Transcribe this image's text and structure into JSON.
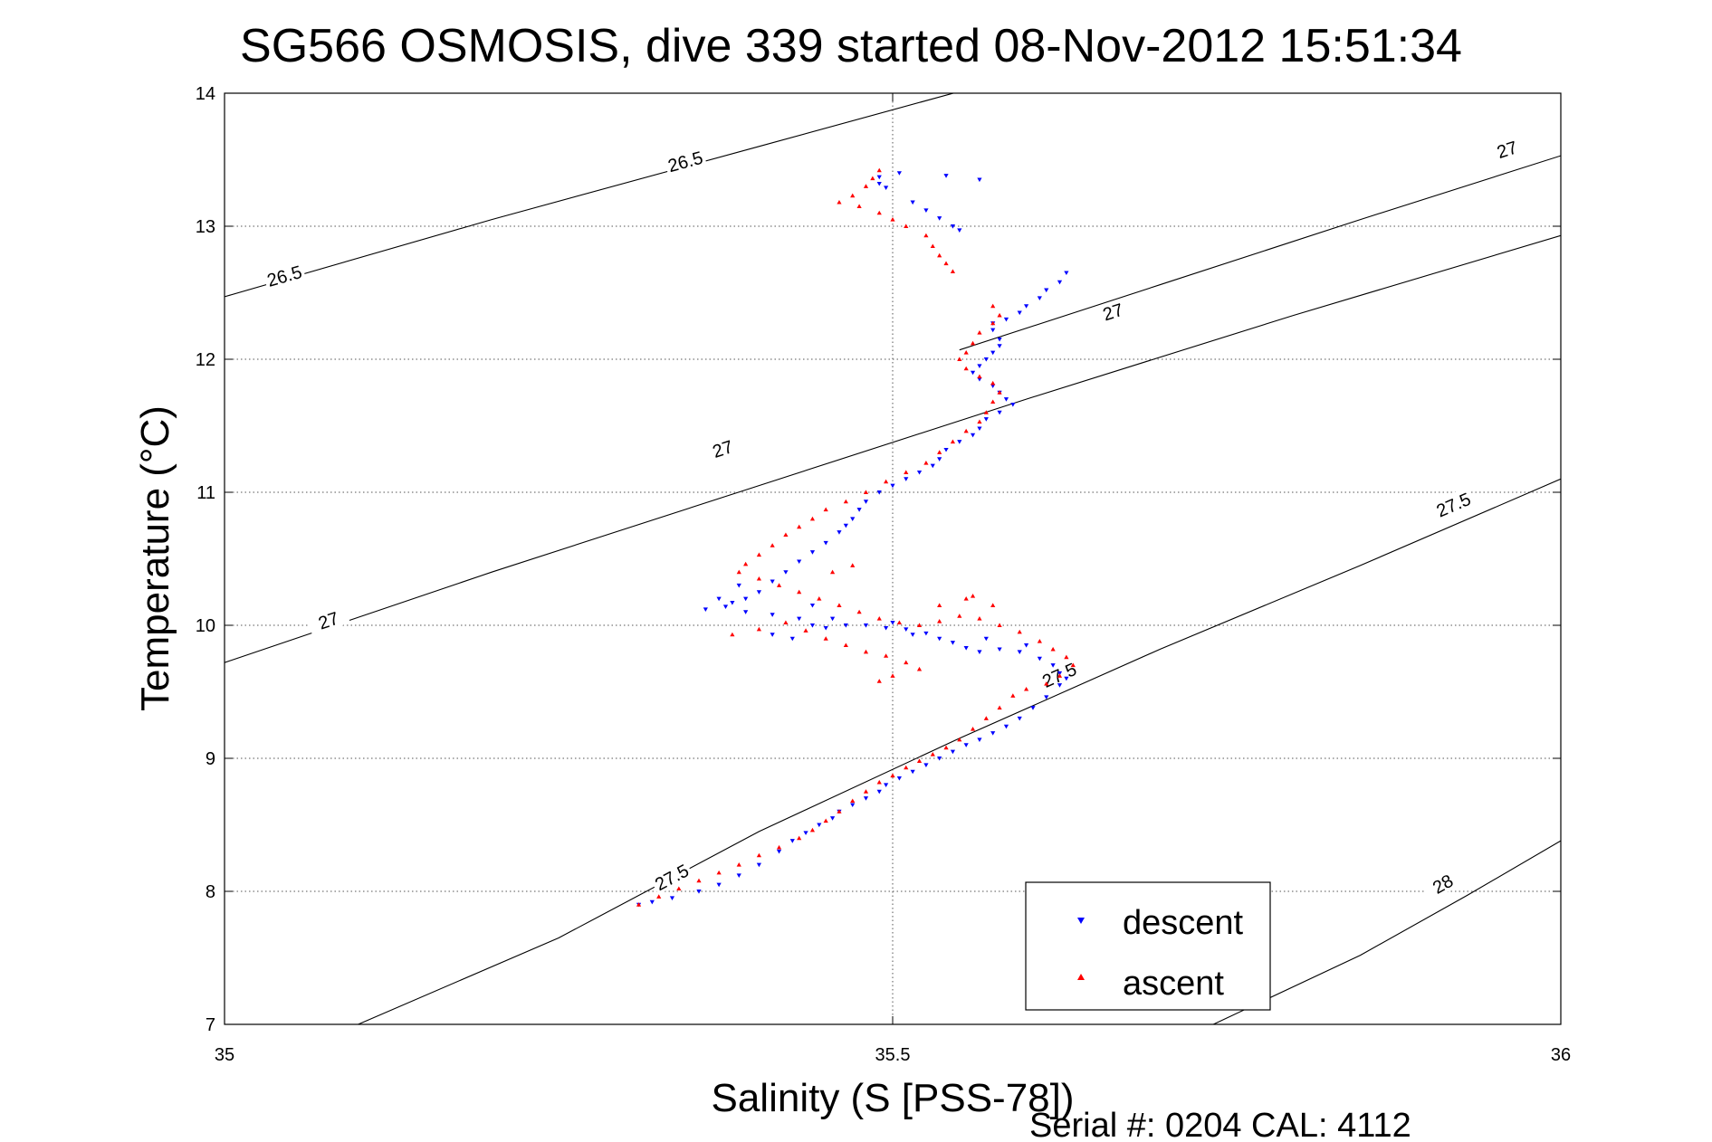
{
  "chart_data": {
    "type": "scatter",
    "title": "SG566 OSMOSIS, dive 339 started 08-Nov-2012 15:51:34",
    "xlabel": "Salinity (S [PSS-78])",
    "ylabel": "Temperature (°C)",
    "xlim": [
      35,
      36
    ],
    "ylim": [
      7,
      14
    ],
    "xticks": [
      35,
      35.5,
      36
    ],
    "xtick_labels": [
      "35",
      "35.5",
      "36"
    ],
    "yticks": [
      7,
      8,
      9,
      10,
      11,
      12,
      13,
      14
    ],
    "ytick_labels": [
      "7",
      "8",
      "9",
      "10",
      "11",
      "12",
      "13",
      "14"
    ],
    "grid": true,
    "legend_position": "bottom-right",
    "footer": "Serial #: 0204  CAL: 4112",
    "colors": {
      "descent": "#0000ff",
      "ascent": "#ff0000",
      "contour": "#000000",
      "grid": "#555555"
    },
    "contours": [
      {
        "level": "26.5",
        "points": [
          [
            35.0,
            12.47
          ],
          [
            35.2,
            13.05
          ],
          [
            35.4,
            13.6
          ],
          [
            35.6,
            14.15
          ]
        ],
        "labels": [
          {
            "text": "26.5",
            "x": 35.045,
            "y": 12.62
          },
          {
            "text": "26.5",
            "x": 35.345,
            "y": 13.48
          }
        ]
      },
      {
        "level": "27",
        "points": [
          [
            35.0,
            9.72
          ],
          [
            35.2,
            10.4
          ],
          [
            35.4,
            11.05
          ],
          [
            35.6,
            11.7
          ],
          [
            35.8,
            12.33
          ],
          [
            36.0,
            12.93
          ]
        ],
        "labels": [
          {
            "text": "27",
            "x": 35.078,
            "y": 10.03
          },
          {
            "text": "27",
            "x": 35.373,
            "y": 11.32
          },
          {
            "text": "27",
            "x": 35.665,
            "y": 12.35
          }
        ]
      },
      {
        "level": "27",
        "points": [
          [
            35.55,
            12.07
          ],
          [
            35.7,
            12.56
          ],
          [
            35.85,
            13.05
          ],
          [
            36.0,
            13.53
          ]
        ],
        "labels": [
          {
            "text": "27",
            "x": 35.96,
            "y": 13.57
          }
        ]
      },
      {
        "level": "27.5",
        "points": [
          [
            35.1,
            7.0
          ],
          [
            35.25,
            7.65
          ],
          [
            35.4,
            8.45
          ],
          [
            35.55,
            9.15
          ],
          [
            35.7,
            9.82
          ],
          [
            35.85,
            10.45
          ],
          [
            36.0,
            11.1
          ]
        ],
        "labels": [
          {
            "text": "27.5",
            "x": 35.335,
            "y": 8.1
          },
          {
            "text": "27.5",
            "x": 35.625,
            "y": 9.62
          },
          {
            "text": "27.5",
            "x": 35.92,
            "y": 10.9
          }
        ]
      },
      {
        "level": "28",
        "points": [
          [
            35.74,
            7.0
          ],
          [
            35.85,
            7.52
          ],
          [
            35.93,
            7.97
          ],
          [
            36.0,
            8.38
          ]
        ],
        "labels": [
          {
            "text": "28",
            "x": 35.912,
            "y": 8.05
          }
        ]
      }
    ],
    "series": [
      {
        "name": "descent",
        "marker": "triangle-down",
        "points": [
          [
            35.565,
            13.35
          ],
          [
            35.54,
            13.38
          ],
          [
            35.505,
            13.4
          ],
          [
            35.49,
            13.37
          ],
          [
            35.49,
            13.32
          ],
          [
            35.495,
            13.29
          ],
          [
            35.515,
            13.18
          ],
          [
            35.525,
            13.12
          ],
          [
            35.535,
            13.06
          ],
          [
            35.545,
            13.0
          ],
          [
            35.55,
            12.97
          ],
          [
            35.63,
            12.65
          ],
          [
            35.625,
            12.58
          ],
          [
            35.615,
            12.52
          ],
          [
            35.61,
            12.46
          ],
          [
            35.6,
            12.4
          ],
          [
            35.595,
            12.35
          ],
          [
            35.585,
            12.3
          ],
          [
            35.575,
            12.27
          ],
          [
            35.575,
            12.22
          ],
          [
            35.58,
            12.15
          ],
          [
            35.58,
            12.1
          ],
          [
            35.575,
            12.05
          ],
          [
            35.57,
            12.0
          ],
          [
            35.565,
            11.95
          ],
          [
            35.56,
            11.9
          ],
          [
            35.565,
            11.85
          ],
          [
            35.575,
            11.8
          ],
          [
            35.58,
            11.75
          ],
          [
            35.585,
            11.7
          ],
          [
            35.59,
            11.66
          ],
          [
            35.58,
            11.6
          ],
          [
            35.57,
            11.55
          ],
          [
            35.565,
            11.48
          ],
          [
            35.56,
            11.43
          ],
          [
            35.55,
            11.38
          ],
          [
            35.54,
            11.32
          ],
          [
            35.535,
            11.25
          ],
          [
            35.53,
            11.2
          ],
          [
            35.52,
            11.15
          ],
          [
            35.51,
            11.1
          ],
          [
            35.5,
            11.05
          ],
          [
            35.49,
            11.0
          ],
          [
            35.48,
            10.93
          ],
          [
            35.475,
            10.87
          ],
          [
            35.47,
            10.8
          ],
          [
            35.465,
            10.75
          ],
          [
            35.46,
            10.7
          ],
          [
            35.45,
            10.62
          ],
          [
            35.44,
            10.55
          ],
          [
            35.43,
            10.48
          ],
          [
            35.42,
            10.4
          ],
          [
            35.41,
            10.33
          ],
          [
            35.4,
            10.25
          ],
          [
            35.39,
            10.2
          ],
          [
            35.38,
            10.17
          ],
          [
            35.375,
            10.14
          ],
          [
            35.39,
            10.1
          ],
          [
            35.41,
            10.08
          ],
          [
            35.43,
            10.05
          ],
          [
            35.44,
            10.0
          ],
          [
            35.45,
            9.98
          ],
          [
            35.465,
            10.0
          ],
          [
            35.48,
            10.0
          ],
          [
            35.495,
            9.98
          ],
          [
            35.51,
            9.97
          ],
          [
            35.525,
            9.94
          ],
          [
            35.535,
            9.9
          ],
          [
            35.545,
            9.87
          ],
          [
            35.555,
            9.83
          ],
          [
            35.565,
            9.8
          ],
          [
            35.58,
            9.82
          ],
          [
            35.595,
            9.8
          ],
          [
            35.61,
            9.75
          ],
          [
            35.62,
            9.7
          ],
          [
            35.625,
            9.64
          ],
          [
            35.63,
            9.6
          ],
          [
            35.625,
            9.55
          ],
          [
            35.615,
            9.46
          ],
          [
            35.605,
            9.38
          ],
          [
            35.595,
            9.3
          ],
          [
            35.585,
            9.24
          ],
          [
            35.575,
            9.19
          ],
          [
            35.565,
            9.14
          ],
          [
            35.555,
            9.1
          ],
          [
            35.545,
            9.05
          ],
          [
            35.535,
            9.0
          ],
          [
            35.525,
            8.95
          ],
          [
            35.515,
            8.9
          ],
          [
            35.505,
            8.85
          ],
          [
            35.495,
            8.8
          ],
          [
            35.49,
            8.75
          ],
          [
            35.48,
            8.7
          ],
          [
            35.47,
            8.65
          ],
          [
            35.46,
            8.6
          ],
          [
            35.455,
            8.55
          ],
          [
            35.445,
            8.5
          ],
          [
            35.435,
            8.44
          ],
          [
            35.425,
            8.38
          ],
          [
            35.415,
            8.3
          ],
          [
            35.4,
            8.2
          ],
          [
            35.385,
            8.12
          ],
          [
            35.37,
            8.05
          ],
          [
            35.355,
            8.0
          ],
          [
            35.335,
            7.95
          ],
          [
            35.32,
            7.92
          ],
          [
            35.31,
            7.9
          ],
          [
            35.385,
            10.3
          ],
          [
            35.37,
            10.2
          ],
          [
            35.36,
            10.12
          ],
          [
            35.41,
            9.93
          ],
          [
            35.425,
            9.9
          ],
          [
            35.5,
            10.02
          ],
          [
            35.515,
            9.93
          ],
          [
            35.44,
            10.15
          ],
          [
            35.455,
            10.05
          ],
          [
            35.57,
            9.9
          ],
          [
            35.6,
            9.85
          ]
        ]
      },
      {
        "name": "ascent",
        "marker": "triangle-up",
        "points": [
          [
            35.49,
            13.42
          ],
          [
            35.485,
            13.36
          ],
          [
            35.48,
            13.3
          ],
          [
            35.47,
            13.23
          ],
          [
            35.46,
            13.18
          ],
          [
            35.475,
            13.15
          ],
          [
            35.49,
            13.1
          ],
          [
            35.5,
            13.05
          ],
          [
            35.51,
            13.0
          ],
          [
            35.525,
            12.93
          ],
          [
            35.53,
            12.85
          ],
          [
            35.535,
            12.78
          ],
          [
            35.54,
            12.72
          ],
          [
            35.545,
            12.66
          ],
          [
            35.575,
            12.4
          ],
          [
            35.58,
            12.33
          ],
          [
            35.575,
            12.27
          ],
          [
            35.565,
            12.2
          ],
          [
            35.56,
            12.12
          ],
          [
            35.555,
            12.05
          ],
          [
            35.55,
            12.0
          ],
          [
            35.555,
            11.93
          ],
          [
            35.565,
            11.87
          ],
          [
            35.575,
            11.82
          ],
          [
            35.58,
            11.75
          ],
          [
            35.575,
            11.68
          ],
          [
            35.57,
            11.6
          ],
          [
            35.565,
            11.53
          ],
          [
            35.555,
            11.46
          ],
          [
            35.545,
            11.38
          ],
          [
            35.535,
            11.3
          ],
          [
            35.525,
            11.22
          ],
          [
            35.51,
            11.15
          ],
          [
            35.495,
            11.08
          ],
          [
            35.48,
            11.0
          ],
          [
            35.465,
            10.93
          ],
          [
            35.45,
            10.87
          ],
          [
            35.44,
            10.8
          ],
          [
            35.43,
            10.74
          ],
          [
            35.42,
            10.68
          ],
          [
            35.41,
            10.6
          ],
          [
            35.4,
            10.53
          ],
          [
            35.39,
            10.46
          ],
          [
            35.385,
            10.4
          ],
          [
            35.4,
            10.35
          ],
          [
            35.415,
            10.3
          ],
          [
            35.43,
            10.25
          ],
          [
            35.445,
            10.2
          ],
          [
            35.46,
            10.15
          ],
          [
            35.475,
            10.1
          ],
          [
            35.49,
            10.05
          ],
          [
            35.505,
            10.02
          ],
          [
            35.52,
            10.0
          ],
          [
            35.535,
            10.03
          ],
          [
            35.55,
            10.07
          ],
          [
            35.565,
            10.05
          ],
          [
            35.58,
            10.0
          ],
          [
            35.595,
            9.95
          ],
          [
            35.61,
            9.88
          ],
          [
            35.62,
            9.82
          ],
          [
            35.63,
            9.76
          ],
          [
            35.635,
            9.7
          ],
          [
            35.625,
            9.62
          ],
          [
            35.615,
            9.56
          ],
          [
            35.6,
            9.52
          ],
          [
            35.59,
            9.47
          ],
          [
            35.58,
            9.38
          ],
          [
            35.57,
            9.3
          ],
          [
            35.56,
            9.22
          ],
          [
            35.55,
            9.14
          ],
          [
            35.54,
            9.08
          ],
          [
            35.53,
            9.03
          ],
          [
            35.52,
            8.98
          ],
          [
            35.51,
            8.93
          ],
          [
            35.5,
            8.87
          ],
          [
            35.49,
            8.82
          ],
          [
            35.48,
            8.75
          ],
          [
            35.47,
            8.68
          ],
          [
            35.46,
            8.6
          ],
          [
            35.45,
            8.53
          ],
          [
            35.44,
            8.46
          ],
          [
            35.43,
            8.4
          ],
          [
            35.415,
            8.33
          ],
          [
            35.4,
            8.27
          ],
          [
            35.385,
            8.2
          ],
          [
            35.37,
            8.14
          ],
          [
            35.355,
            8.08
          ],
          [
            35.34,
            8.02
          ],
          [
            35.325,
            7.96
          ],
          [
            35.31,
            7.9
          ],
          [
            35.38,
            9.93
          ],
          [
            35.4,
            9.97
          ],
          [
            35.42,
            10.02
          ],
          [
            35.435,
            9.96
          ],
          [
            35.45,
            9.9
          ],
          [
            35.465,
            9.85
          ],
          [
            35.48,
            9.8
          ],
          [
            35.495,
            9.77
          ],
          [
            35.51,
            9.72
          ],
          [
            35.52,
            9.67
          ],
          [
            35.5,
            9.62
          ],
          [
            35.49,
            9.58
          ],
          [
            35.535,
            10.15
          ],
          [
            35.555,
            10.2
          ],
          [
            35.575,
            10.15
          ],
          [
            35.56,
            10.22
          ],
          [
            35.455,
            10.4
          ],
          [
            35.47,
            10.45
          ]
        ]
      }
    ]
  }
}
